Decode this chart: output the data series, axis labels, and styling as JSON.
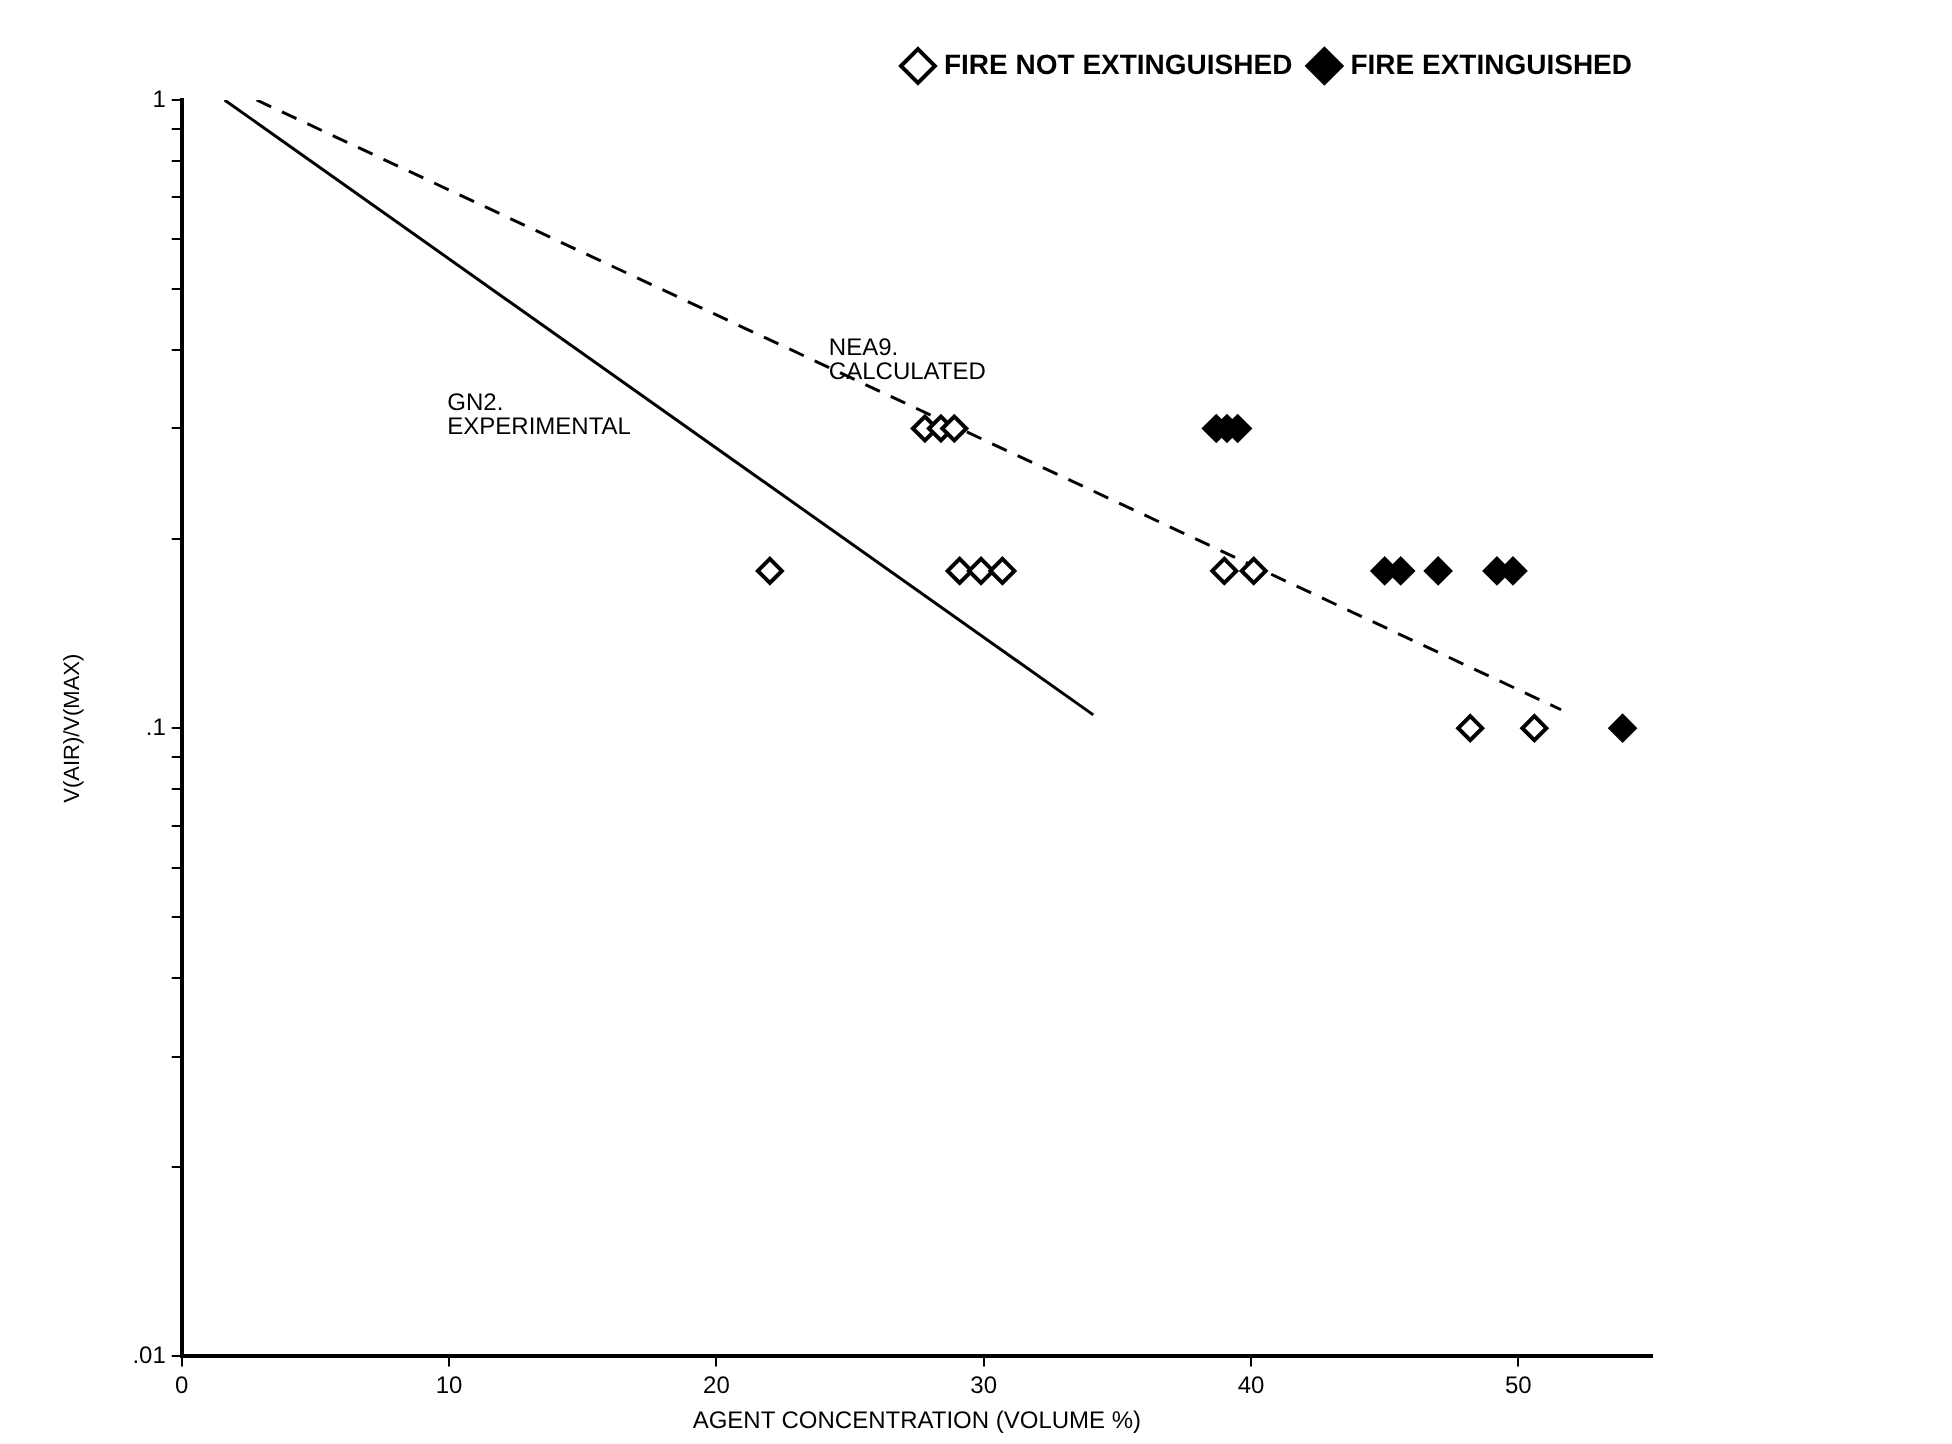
{
  "chart_data": {
    "type": "scatter",
    "xlabel": "AGENT CONCENTRATION (VOLUME %)",
    "ylabel": "V(AIR)/V(MAX)",
    "log": "y",
    "grid": false,
    "legend": "top right",
    "marker": "diamond",
    "xlim": [
      0,
      55
    ],
    "xticks": [
      0,
      10,
      20,
      30,
      40,
      50
    ],
    "ylim": [
      0.01,
      1
    ],
    "yticks": [
      {
        "value": 0.01,
        "label": ".01"
      },
      {
        "value": 0.02,
        "label": null
      },
      {
        "value": 0.03,
        "label": null
      },
      {
        "value": 0.04,
        "label": null
      },
      {
        "value": 0.05,
        "label": null
      },
      {
        "value": 0.06,
        "label": null
      },
      {
        "value": 0.07,
        "label": null
      },
      {
        "value": 0.08,
        "label": null
      },
      {
        "value": 0.09,
        "label": null
      },
      {
        "value": 0.1,
        "label": ".1"
      },
      {
        "value": 0.2,
        "label": null
      },
      {
        "value": 0.3,
        "label": null
      },
      {
        "value": 0.4,
        "label": null
      },
      {
        "value": 0.5,
        "label": null
      },
      {
        "value": 0.6,
        "label": null
      },
      {
        "value": 0.7,
        "label": null
      },
      {
        "value": 0.8,
        "label": null
      },
      {
        "value": 0.9,
        "label": null
      },
      {
        "value": 1,
        "label": "1"
      }
    ],
    "series": [
      {
        "name": "FIRE NOT EXTINGUISHED",
        "color": "#ffffff",
        "x": [
          27.8,
          28.4,
          28.9,
          22.0,
          29.1,
          29.9,
          30.7,
          39.0,
          40.1,
          48.2,
          50.6
        ],
        "values": [
          0.3,
          0.3,
          0.3,
          0.178,
          0.178,
          0.178,
          0.178,
          0.178,
          0.178,
          0.1,
          0.1
        ]
      },
      {
        "name": "FIRE EXTINGUISHED",
        "color": "#000000",
        "x": [
          38.7,
          39.1,
          39.5,
          45.0,
          45.6,
          47.0,
          49.2,
          49.8,
          53.9
        ],
        "values": [
          0.3,
          0.3,
          0.3,
          0.178,
          0.178,
          0.178,
          0.178,
          0.178,
          0.1
        ]
      },
      {
        "name": "GN2.\nEXPERIMENTAL",
        "type": "line",
        "line_style": "solid",
        "marker": "none",
        "color": "#000000",
        "x": [
          1.6,
          34.1
        ],
        "values": [
          1,
          0.105
        ]
      },
      {
        "name": "NEA9.\nCALCULATED",
        "type": "line",
        "line_style": "dashed",
        "marker": "none",
        "color": "#000000",
        "x": [
          2.8,
          51.6
        ],
        "values": [
          1,
          0.107
        ]
      }
    ]
  }
}
